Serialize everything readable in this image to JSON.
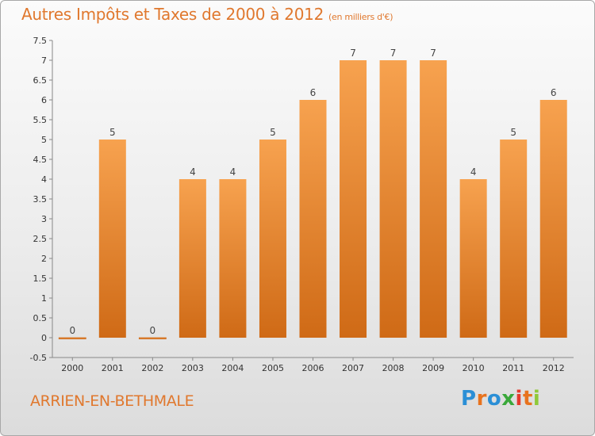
{
  "header": {
    "title": "Autres Impôts et Taxes de 2000 à 2012",
    "unit": "(en milliers d'€)"
  },
  "footer": {
    "commune": "ARRIEN-EN-BETHMALE",
    "logo_letters": [
      "P",
      "r",
      "o",
      "x",
      "i",
      "t",
      "i"
    ],
    "logo_colors": [
      "#2b8fd6",
      "#e8731e",
      "#2b8fd6",
      "#3aa83a",
      "#e63b2e",
      "#e8731e",
      "#8fc93a"
    ]
  },
  "chart_data": {
    "type": "bar",
    "categories": [
      "2000",
      "2001",
      "2002",
      "2003",
      "2004",
      "2005",
      "2006",
      "2007",
      "2008",
      "2009",
      "2010",
      "2011",
      "2012"
    ],
    "values": [
      0,
      5,
      0,
      4,
      4,
      5,
      6,
      7,
      7,
      7,
      4,
      5,
      6
    ],
    "value_labels": [
      "0",
      "5",
      "0",
      "4",
      "4",
      "5",
      "6",
      "7",
      "7",
      "7",
      "4",
      "5",
      "6"
    ],
    "yticks": [
      "-0.5",
      "0",
      "0.5",
      "1",
      "1.5",
      "2",
      "2.5",
      "3",
      "3.5",
      "4",
      "4.5",
      "5",
      "5.5",
      "6",
      "6.5",
      "7",
      "7.5"
    ],
    "ylim": [
      -0.5,
      7.5
    ],
    "grid": false,
    "bar_color_top": "#f7a24f",
    "bar_color_bottom": "#cf6a16",
    "axis_color": "#888888"
  }
}
